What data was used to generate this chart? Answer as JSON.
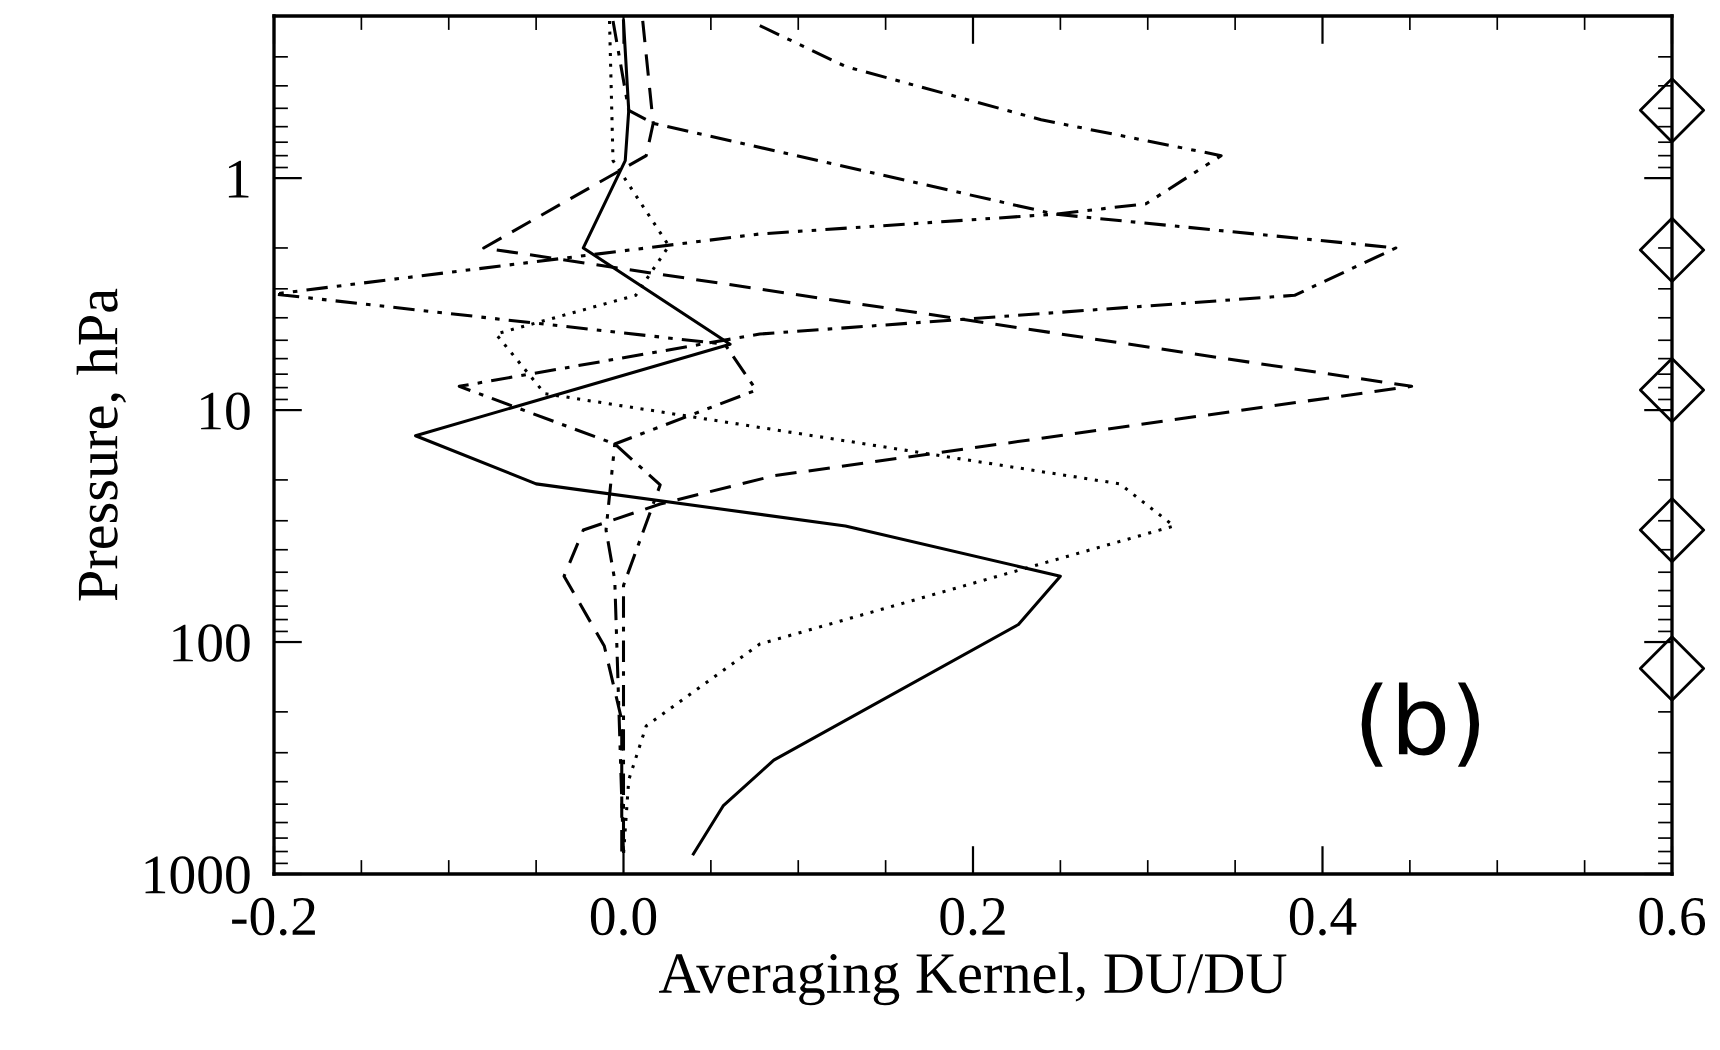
{
  "chart_data": {
    "type": "line",
    "xlabel": "Averaging Kernel, DU/DU",
    "ylabel": "Pressure, hPa",
    "log": "y",
    "xlim": [
      -0.2,
      0.6
    ],
    "xticks": [
      -0.2,
      {
        "value": 0,
        "label": "0.0"
      },
      0.2,
      0.4,
      0.6
    ],
    "ylim": [
      1000,
      0.2
    ],
    "yticks": [
      1,
      10,
      100,
      1000
    ],
    "annotations": [
      "(b)"
    ],
    "series": [
      {
        "color": "#000000",
        "line_style": "solid",
        "x": [
          0.0,
          0.003,
          0.001,
          -0.023,
          0.061,
          -0.119,
          -0.05,
          0.127,
          0.25,
          0.226,
          0.086,
          0.057,
          0.04
        ],
        "values": [
          0.21,
          0.51,
          0.84,
          2.0,
          5.2,
          12.9,
          20.8,
          31.6,
          52,
          84,
          323,
          509,
          820
        ]
      },
      {
        "color": "#000000",
        "line_style": "dashed",
        "x": [
          0.011,
          0.017,
          0.013,
          -0.08,
          0.451,
          0.086,
          0.021,
          -0.023,
          -0.034,
          -0.011,
          -0.001,
          -0.001
        ],
        "values": [
          0.21,
          0.58,
          0.8,
          2.0,
          7.9,
          19.2,
          25.4,
          32.9,
          52,
          104,
          217,
          870
        ]
      },
      {
        "color": "#000000",
        "line_style": "dotted",
        "x": [
          -0.008,
          -0.006,
          0.026,
          0.007,
          -0.073,
          -0.045,
          0.284,
          0.315,
          0.078,
          0.013,
          0.003,
          0.0
        ],
        "values": [
          0.21,
          0.84,
          1.96,
          3.2,
          4.7,
          8.5,
          20.8,
          31.6,
          102,
          230,
          393,
          820
        ]
      },
      {
        "color": "#000000",
        "line_style": "dashdot",
        "x": [
          -0.006,
          0.003,
          0.017,
          0.247,
          0.442,
          0.384,
          0.078,
          -0.094,
          -0.005,
          0.021,
          0.0,
          0.0
        ],
        "values": [
          0.21,
          0.51,
          0.58,
          1.43,
          2.0,
          3.2,
          4.7,
          7.9,
          14,
          21,
          57,
          820
        ]
      },
      {
        "color": "#000000",
        "line_style": "dashdotdot",
        "x": [
          0.078,
          0.127,
          0.239,
          0.342,
          0.299,
          0.247,
          0.078,
          -0.2,
          0.058,
          0.076,
          -0.005,
          -0.01,
          -0.005,
          0.0
        ],
        "values": [
          0.22,
          0.33,
          0.56,
          0.8,
          1.29,
          1.43,
          1.74,
          3.16,
          5.2,
          8.2,
          14,
          32.9,
          54,
          820
        ]
      },
      {
        "type": "scatter",
        "color": "#000000",
        "marker": "diamond",
        "x": [
          0.6,
          0.6,
          0.6,
          0.6,
          0.6
        ],
        "values": [
          0.51,
          2.04,
          8.2,
          32.9,
          130
        ]
      }
    ]
  }
}
